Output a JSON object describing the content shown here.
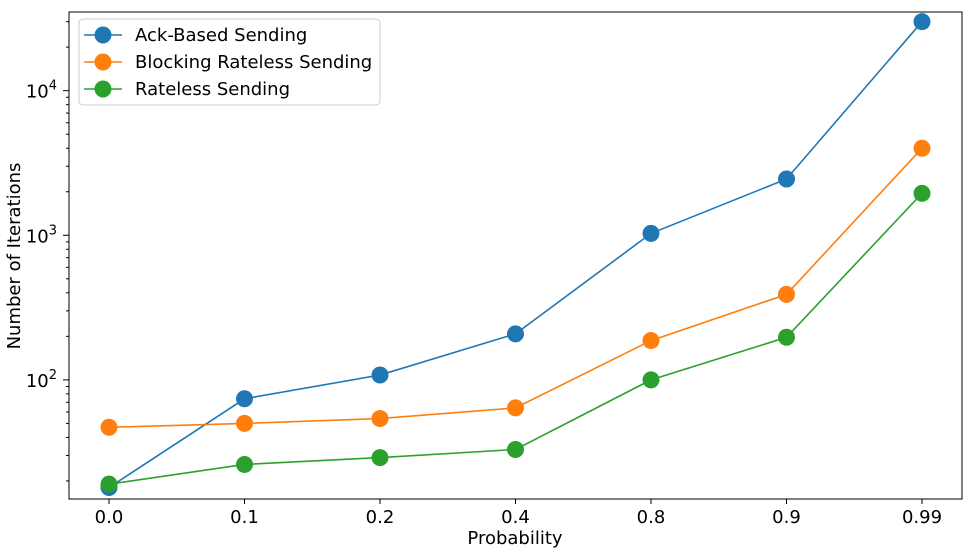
{
  "chart_data": {
    "type": "line",
    "title": "",
    "xlabel": "Probability",
    "ylabel": "Number of Iterations",
    "yscale": "log",
    "ylim": [
      15,
      35000
    ],
    "categories": [
      "0.0",
      "0.1",
      "0.2",
      "0.4",
      "0.8",
      "0.9",
      "0.99"
    ],
    "y_major_ticks": [
      {
        "value": 100,
        "base": "10",
        "exp": "2"
      },
      {
        "value": 1000,
        "base": "10",
        "exp": "3"
      },
      {
        "value": 10000,
        "base": "10",
        "exp": "4"
      }
    ],
    "legend_position": "top-left",
    "grid": false,
    "series": [
      {
        "name": "Ack-Based Sending",
        "color": "#1f77b4",
        "values": [
          18,
          74,
          108,
          208,
          1030,
          2450,
          30000
        ]
      },
      {
        "name": "Blocking Rateless Sending",
        "color": "#ff7f0e",
        "values": [
          47,
          50,
          54,
          64,
          187,
          390,
          4000
        ]
      },
      {
        "name": "Rateless Sending",
        "color": "#2ca02c",
        "values": [
          19,
          26,
          29,
          33,
          100,
          197,
          1950
        ]
      }
    ]
  }
}
